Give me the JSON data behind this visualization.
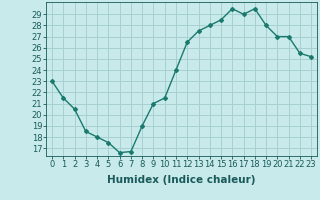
{
  "x": [
    0,
    1,
    2,
    3,
    4,
    5,
    6,
    7,
    8,
    9,
    10,
    11,
    12,
    13,
    14,
    15,
    16,
    17,
    18,
    19,
    20,
    21,
    22,
    23
  ],
  "y": [
    23.0,
    21.5,
    20.5,
    18.5,
    18.0,
    17.5,
    16.6,
    16.7,
    19.0,
    21.0,
    21.5,
    24.0,
    26.5,
    27.5,
    28.0,
    28.5,
    29.5,
    29.0,
    29.5,
    28.0,
    27.0,
    27.0,
    25.5,
    25.2
  ],
  "xlabel": "Humidex (Indice chaleur)",
  "ylabel": "",
  "ylim": [
    16.3,
    30.1
  ],
  "xlim": [
    -0.5,
    23.5
  ],
  "yticks": [
    17,
    18,
    19,
    20,
    21,
    22,
    23,
    24,
    25,
    26,
    27,
    28,
    29
  ],
  "xticks": [
    0,
    1,
    2,
    3,
    4,
    5,
    6,
    7,
    8,
    9,
    10,
    11,
    12,
    13,
    14,
    15,
    16,
    17,
    18,
    19,
    20,
    21,
    22,
    23
  ],
  "xtick_labels": [
    "0",
    "1",
    "2",
    "3",
    "4",
    "5",
    "6",
    "7",
    "8",
    "9",
    "10",
    "11",
    "12",
    "13",
    "14",
    "15",
    "16",
    "17",
    "18",
    "19",
    "20",
    "21",
    "22",
    "23"
  ],
  "line_color": "#1a7a6e",
  "marker": "D",
  "marker_size": 2.0,
  "bg_color": "#c8eaea",
  "grid_color": "#a8d0d0",
  "label_color": "#1a5a5a",
  "tick_fontsize": 6.0,
  "xlabel_fontsize": 7.5
}
